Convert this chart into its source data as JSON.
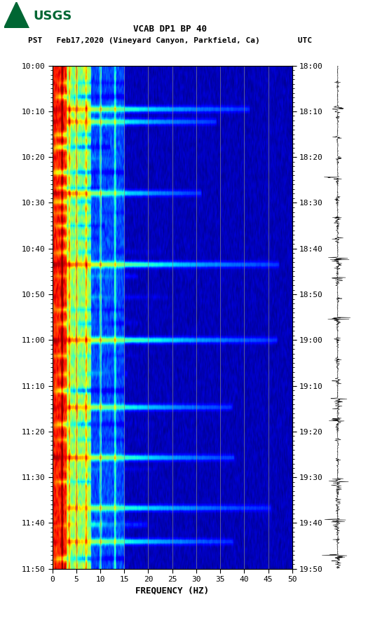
{
  "title_line1": "VCAB DP1 BP 40",
  "title_line2": "PST   Feb17,2020 (Vineyard Canyon, Parkfield, Ca)        UTC",
  "xlabel": "FREQUENCY (HZ)",
  "freq_min": 0,
  "freq_max": 50,
  "freq_ticks": [
    0,
    5,
    10,
    15,
    20,
    25,
    30,
    35,
    40,
    45,
    50
  ],
  "pst_ticks": [
    "10:00",
    "10:10",
    "10:20",
    "10:30",
    "10:40",
    "10:50",
    "11:00",
    "11:10",
    "11:20",
    "11:30",
    "11:40",
    "11:50"
  ],
  "utc_ticks": [
    "18:00",
    "18:10",
    "18:20",
    "18:30",
    "18:40",
    "18:50",
    "19:00",
    "19:10",
    "19:20",
    "19:30",
    "19:40",
    "19:50"
  ],
  "n_time": 240,
  "n_freq": 500,
  "background_color": "#ffffff",
  "spectrogram_vlines_freq": [
    5,
    10,
    15,
    20,
    25,
    30,
    35,
    40,
    45
  ],
  "colormap": "jet",
  "usgs_logo_color": "#006633"
}
